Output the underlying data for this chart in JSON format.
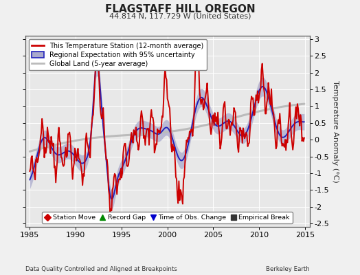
{
  "title": "FLAGSTAFF HILL OREGON",
  "subtitle": "44.814 N, 117.729 W (United States)",
  "ylabel": "Temperature Anomaly (°C)",
  "xlabel_left": "Data Quality Controlled and Aligned at Breakpoints",
  "xlabel_right": "Berkeley Earth",
  "xlim": [
    1984.5,
    2015.5
  ],
  "ylim": [
    -2.6,
    3.1
  ],
  "yticks": [
    -2.5,
    -2.0,
    -1.5,
    -1.0,
    -0.5,
    0.0,
    0.5,
    1.0,
    1.5,
    2.0,
    2.5,
    3.0
  ],
  "xticks": [
    1985,
    1990,
    1995,
    2000,
    2005,
    2010,
    2015
  ],
  "background_color": "#f0f0f0",
  "plot_bg_color": "#e8e8e8",
  "grid_color": "#ffffff",
  "station_color": "#cc0000",
  "regional_color": "#2222bb",
  "regional_fill_color": "#aaaacc",
  "global_color": "#bbbbbb",
  "legend_items": [
    {
      "label": "This Temperature Station (12-month average)",
      "color": "#cc0000",
      "lw": 1.8
    },
    {
      "label": "Regional Expectation with 95% uncertainty",
      "color": "#2222bb",
      "lw": 1.5
    },
    {
      "label": "Global Land (5-year average)",
      "color": "#bbbbbb",
      "lw": 2.0
    }
  ],
  "bottom_legend": [
    {
      "marker": "D",
      "color": "#cc0000",
      "label": "Station Move"
    },
    {
      "marker": "^",
      "color": "#008800",
      "label": "Record Gap"
    },
    {
      "marker": "v",
      "color": "#0000cc",
      "label": "Time of Obs. Change"
    },
    {
      "marker": "s",
      "color": "#333333",
      "label": "Empirical Break"
    }
  ]
}
